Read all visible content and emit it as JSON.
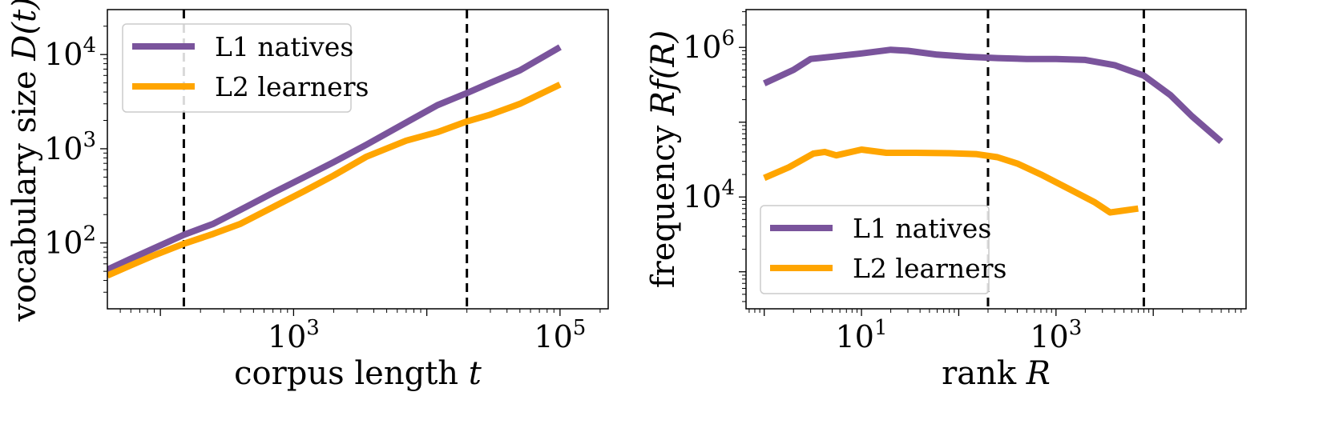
{
  "chart_data": [
    {
      "type": "line",
      "scale": {
        "x": "log",
        "y": "log"
      },
      "xlabel_text": "corpus length ",
      "xlabel_var": "t",
      "ylabel_text": "vocabulary size ",
      "ylabel_var": "D(t)",
      "xlim": [
        40,
        230000
      ],
      "ylim": [
        20,
        30000
      ],
      "xticks": [
        {
          "value": 1000,
          "base": "10",
          "exp": "3"
        },
        {
          "value": 100000,
          "base": "10",
          "exp": "5"
        }
      ],
      "yticks": [
        {
          "value": 100,
          "base": "10",
          "exp": "2"
        },
        {
          "value": 1000,
          "base": "10",
          "exp": "3"
        },
        {
          "value": 10000,
          "base": "10",
          "exp": "4"
        }
      ],
      "vlines": [
        150,
        20000
      ],
      "legend": {
        "position": "top-left"
      },
      "series": [
        {
          "name": "L1 natives",
          "color": "#7a549c",
          "x": [
            40,
            60,
            90,
            150,
            250,
            400,
            700,
            1200,
            2000,
            3500,
            7000,
            12000,
            20000,
            30000,
            50000,
            100000
          ],
          "y": [
            52,
            68,
            88,
            122,
            160,
            225,
            340,
            500,
            720,
            1100,
            1900,
            2900,
            3900,
            5000,
            6800,
            12000
          ]
        },
        {
          "name": "L2 learners",
          "color": "#ffa500",
          "x": [
            40,
            60,
            90,
            150,
            250,
            400,
            700,
            1200,
            2000,
            3500,
            7000,
            12000,
            20000,
            30000,
            50000,
            100000
          ],
          "y": [
            45,
            58,
            74,
            98,
            125,
            160,
            240,
            355,
            520,
            820,
            1220,
            1500,
            1950,
            2300,
            3000,
            4800
          ]
        }
      ]
    },
    {
      "type": "line",
      "scale": {
        "x": "log",
        "y": "log"
      },
      "xlabel_text": "rank ",
      "xlabel_var": "R",
      "ylabel_text": "frequency ",
      "ylabel_var": "Rf(R)",
      "xlim": [
        0.65,
        90000
      ],
      "ylim": [
        320,
        3200000
      ],
      "xticks": [
        {
          "value": 10,
          "base": "10",
          "exp": "1"
        },
        {
          "value": 1000,
          "base": "10",
          "exp": "3"
        }
      ],
      "yticks": [
        {
          "value": 10000,
          "base": "10",
          "exp": "4"
        },
        {
          "value": 1000000,
          "base": "10",
          "exp": "6"
        }
      ],
      "vlines": [
        200,
        8000
      ],
      "legend": {
        "position": "bottom-left"
      },
      "series": [
        {
          "name": "L1 natives",
          "color": "#7a549c",
          "x": [
            1,
            2,
            3,
            5,
            10,
            20,
            30,
            60,
            120,
            250,
            500,
            1000,
            2000,
            4000,
            8000,
            15000,
            25000,
            50000
          ],
          "y": [
            330000,
            500000,
            700000,
            750000,
            830000,
            930000,
            900000,
            800000,
            750000,
            720000,
            700000,
            700000,
            680000,
            580000,
            420000,
            230000,
            120000,
            55000
          ]
        },
        {
          "name": "L2 learners",
          "color": "#ffa500",
          "x": [
            1,
            1.8,
            3.2,
            4.2,
            5.5,
            10,
            18,
            35,
            80,
            150,
            250,
            400,
            700,
            1500,
            2500,
            3600,
            7000
          ],
          "y": [
            18000,
            25000,
            38000,
            40000,
            36000,
            43000,
            39000,
            39000,
            38500,
            37500,
            34000,
            28000,
            20000,
            12000,
            8500,
            6200,
            7000
          ]
        }
      ]
    }
  ]
}
